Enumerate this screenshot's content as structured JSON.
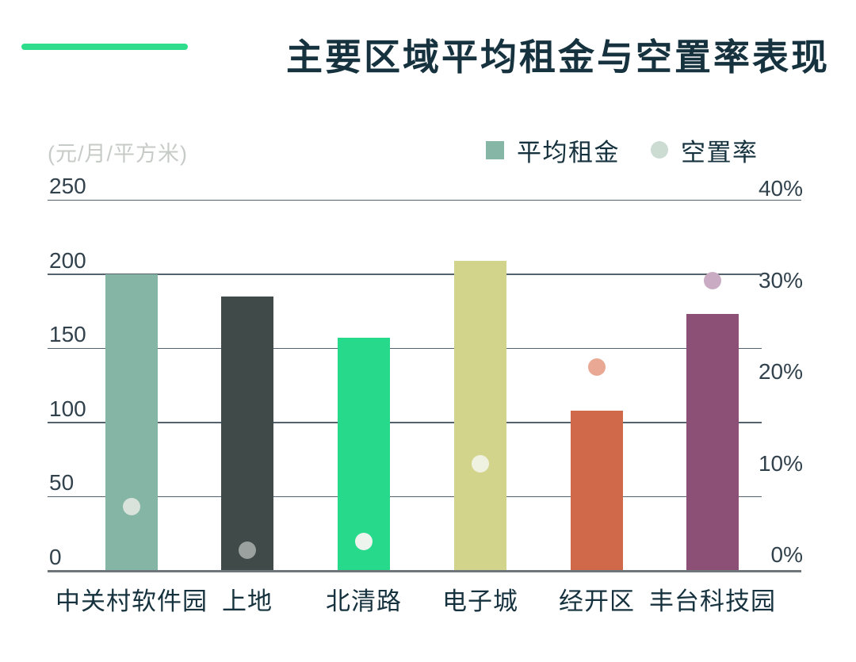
{
  "title": "主要区域平均租金与空置率表现",
  "unit_label": "(元/月/平方米)",
  "legend": {
    "rent_label": "平均租金",
    "vacancy_label": "空置率"
  },
  "colors": {
    "accent_line": "#2edd8b",
    "title_text": "#15323e",
    "tick_text": "#32424d",
    "x_label_text": "#15323e",
    "unit_text": "#c7cbc7",
    "gridline": "#53626c",
    "baseline": "#6f767a",
    "legend_rent_swatch": "#86b6a5",
    "legend_vacancy_swatch": "#ccdcd2"
  },
  "chart_data": {
    "type": "bar",
    "subtype": "combo bar + scatter, dual axis",
    "title": "主要区域平均租金与空置率表现",
    "categories": [
      "中关村软件园",
      "上地",
      "北清路",
      "电子城",
      "经开区",
      "丰台科技园"
    ],
    "series": [
      {
        "name": "平均租金",
        "type": "bar",
        "axis": "left",
        "unit": "元/月/平方米",
        "values": [
          200,
          185,
          157,
          209,
          108,
          173
        ],
        "colors": [
          "#85b5a4",
          "#3f4a49",
          "#27d98a",
          "#d3d48c",
          "#d0684a",
          "#8c5076"
        ]
      },
      {
        "name": "空置率",
        "type": "scatter",
        "axis": "right",
        "unit": "%",
        "values": [
          5.3,
          0.5,
          1.5,
          10,
          20.5,
          30
        ],
        "colors": [
          "#d9e3dc",
          "#9ba19f",
          "#edf4ee",
          "#f0f2e1",
          "#e8a893",
          "#c9abc3"
        ]
      }
    ],
    "left_axis": {
      "label": "(元/月/平方米)",
      "ticks": [
        250,
        200,
        150,
        100,
        50,
        0
      ],
      "min": 0,
      "max": 250
    },
    "right_axis": {
      "ticks": [
        "40%",
        "30%",
        "20%",
        "10%",
        "0%"
      ],
      "min": 0,
      "max": 40
    },
    "grid": true,
    "legend_position": "top-right"
  }
}
